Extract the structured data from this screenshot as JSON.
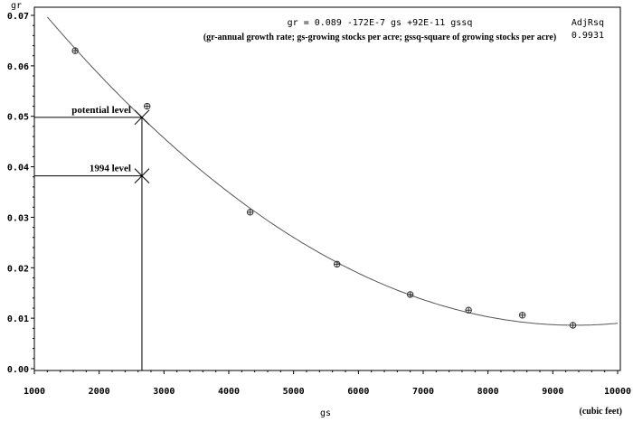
{
  "chart_data": {
    "type": "scatter",
    "title": "gr = 0.089 -172E-7 gs +92E-11 gssq",
    "subtitle": "(gr-annual growth rate; gs-growing stocks per acre; gssq-square of growing stocks per acre)",
    "stat_label": "AdjRsq",
    "stat_value": "0.9931",
    "xlabel": "gs",
    "xunit": "(cubic feet)",
    "ylabel": "gr",
    "xlim": [
      1000,
      10000
    ],
    "ylim": [
      0,
      0.07
    ],
    "xticks": [
      "1000",
      "2000",
      "3000",
      "4000",
      "5000",
      "6000",
      "7000",
      "8000",
      "9000",
      "10000"
    ],
    "yticks": [
      "0.00",
      "0.01",
      "0.02",
      "0.03",
      "0.04",
      "0.05",
      "0.06",
      "0.07"
    ],
    "points": [
      {
        "x": 1630,
        "y": 0.063
      },
      {
        "x": 2740,
        "y": 0.052
      },
      {
        "x": 4330,
        "y": 0.031
      },
      {
        "x": 5670,
        "y": 0.0207
      },
      {
        "x": 6800,
        "y": 0.0147
      },
      {
        "x": 7700,
        "y": 0.0116
      },
      {
        "x": 8530,
        "y": 0.0106
      },
      {
        "x": 9310,
        "y": 0.0086
      }
    ],
    "fit": {
      "a": 0.089,
      "b": -1.72e-05,
      "c": 9.2e-10,
      "xrange": [
        1200,
        10000
      ]
    },
    "annotations": [
      {
        "label": "potential level",
        "x": 2660,
        "y": 0.0498
      },
      {
        "label": "1994 level",
        "x": 2660,
        "y": 0.0382
      }
    ]
  }
}
